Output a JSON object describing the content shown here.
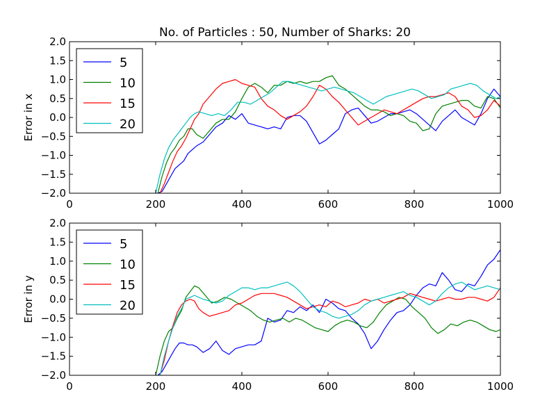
{
  "title": "No. of Particles : 50, Number of Sharks: 20",
  "chart_data": [
    {
      "type": "line",
      "title": "No. of Particles : 50, Number of Sharks: 20",
      "xlabel": "",
      "ylabel": "Error in x",
      "xlim": [
        0,
        1000
      ],
      "ylim": [
        -2.0,
        2.0
      ],
      "xticks": [
        "0",
        "200",
        "400",
        "600",
        "800",
        "1000"
      ],
      "yticks": [
        "−2.0",
        "−1.5",
        "−1.0",
        "−0.5",
        "0.0",
        "0.5",
        "1.0",
        "1.5",
        "2.0"
      ],
      "grid": false,
      "legend": "top-left",
      "series": [
        {
          "name": "5",
          "color": "#0000ff",
          "x": [
            205,
            215,
            225,
            235,
            245,
            255,
            265,
            275,
            285,
            295,
            310,
            325,
            340,
            355,
            370,
            385,
            400,
            415,
            430,
            445,
            460,
            475,
            490,
            505,
            520,
            535,
            550,
            565,
            580,
            595,
            610,
            625,
            640,
            655,
            670,
            685,
            700,
            715,
            730,
            745,
            760,
            775,
            790,
            805,
            820,
            835,
            850,
            865,
            880,
            895,
            910,
            925,
            940,
            955,
            970,
            985,
            1000
          ],
          "y": [
            -2.0,
            -1.95,
            -1.75,
            -1.55,
            -1.35,
            -1.25,
            -1.15,
            -0.95,
            -0.85,
            -0.75,
            -0.65,
            -0.45,
            -0.25,
            -0.15,
            0.05,
            -0.05,
            0.1,
            -0.15,
            -0.2,
            -0.25,
            -0.3,
            -0.25,
            -0.3,
            0.0,
            0.05,
            0.05,
            -0.1,
            -0.4,
            -0.7,
            -0.6,
            -0.45,
            -0.3,
            0.1,
            0.2,
            0.25,
            0.05,
            -0.15,
            -0.1,
            0.0,
            0.1,
            0.1,
            0.15,
            0.2,
            0.1,
            -0.05,
            -0.2,
            -0.35,
            -0.1,
            0.05,
            0.2,
            0.0,
            -0.1,
            -0.2,
            0.1,
            0.5,
            0.75,
            0.55
          ]
        },
        {
          "name": "10",
          "color": "#008000",
          "x": [
            205,
            215,
            225,
            235,
            245,
            255,
            265,
            275,
            285,
            295,
            310,
            325,
            340,
            355,
            370,
            385,
            400,
            415,
            430,
            445,
            460,
            475,
            490,
            505,
            520,
            535,
            550,
            565,
            580,
            595,
            610,
            625,
            640,
            655,
            670,
            685,
            700,
            715,
            730,
            745,
            760,
            775,
            790,
            805,
            820,
            835,
            850,
            865,
            880,
            895,
            910,
            925,
            940,
            955,
            970,
            985,
            1000
          ],
          "y": [
            -2.0,
            -1.55,
            -1.2,
            -0.95,
            -0.8,
            -0.6,
            -0.5,
            -0.3,
            -0.3,
            -0.45,
            -0.55,
            -0.35,
            -0.15,
            -0.05,
            -0.05,
            0.15,
            0.5,
            0.8,
            0.9,
            0.8,
            0.65,
            0.85,
            0.85,
            0.95,
            0.9,
            0.95,
            0.9,
            0.95,
            0.95,
            1.05,
            1.1,
            0.85,
            0.75,
            0.6,
            0.45,
            0.3,
            0.2,
            0.2,
            0.15,
            0.05,
            0.1,
            0.05,
            -0.1,
            -0.15,
            -0.35,
            -0.3,
            0.1,
            0.3,
            0.35,
            0.4,
            0.45,
            0.45,
            0.3,
            0.25,
            0.55,
            0.5,
            0.25
          ]
        },
        {
          "name": "15",
          "color": "#ff0000",
          "x": [
            210,
            220,
            230,
            240,
            250,
            260,
            270,
            280,
            290,
            300,
            310,
            325,
            340,
            355,
            370,
            385,
            400,
            415,
            430,
            445,
            460,
            475,
            490,
            505,
            520,
            535,
            550,
            565,
            580,
            595,
            610,
            625,
            640,
            655,
            670,
            685,
            700,
            715,
            730,
            745,
            760,
            775,
            790,
            805,
            820,
            835,
            850,
            865,
            880,
            895,
            910,
            925,
            940,
            955,
            970,
            985,
            1000
          ],
          "y": [
            -2.0,
            -1.75,
            -1.45,
            -1.15,
            -0.9,
            -0.75,
            -0.55,
            -0.3,
            -0.05,
            0.1,
            0.35,
            0.55,
            0.75,
            0.9,
            0.95,
            1.0,
            0.9,
            0.85,
            0.8,
            0.5,
            0.3,
            0.2,
            0.05,
            -0.05,
            0.05,
            0.15,
            0.3,
            0.55,
            0.85,
            0.75,
            0.55,
            0.4,
            0.2,
            0.0,
            -0.2,
            -0.1,
            0.0,
            0.1,
            0.2,
            0.15,
            0.1,
            0.2,
            0.3,
            0.4,
            0.5,
            0.55,
            0.55,
            0.6,
            0.65,
            0.55,
            0.3,
            0.2,
            0.0,
            0.05,
            0.2,
            0.45,
            0.3
          ]
        },
        {
          "name": "20",
          "color": "#00bfbf",
          "x": [
            200,
            210,
            220,
            230,
            240,
            250,
            260,
            270,
            280,
            290,
            300,
            315,
            330,
            345,
            360,
            375,
            390,
            405,
            420,
            435,
            450,
            465,
            480,
            495,
            510,
            525,
            540,
            555,
            570,
            585,
            600,
            615,
            630,
            645,
            660,
            675,
            690,
            705,
            720,
            735,
            750,
            765,
            780,
            795,
            810,
            825,
            840,
            855,
            870,
            885,
            900,
            915,
            930,
            945,
            960,
            975,
            990,
            1000
          ],
          "y": [
            -2.0,
            -1.5,
            -1.1,
            -0.8,
            -0.6,
            -0.45,
            -0.3,
            -0.15,
            0.0,
            0.1,
            0.15,
            0.1,
            0.05,
            0.1,
            0.05,
            0.2,
            0.4,
            0.4,
            0.35,
            0.45,
            0.55,
            0.65,
            0.8,
            0.95,
            0.95,
            0.9,
            0.85,
            0.8,
            0.75,
            0.7,
            0.75,
            0.8,
            0.75,
            0.7,
            0.65,
            0.55,
            0.45,
            0.35,
            0.45,
            0.55,
            0.6,
            0.65,
            0.7,
            0.75,
            0.7,
            0.6,
            0.5,
            0.55,
            0.6,
            0.75,
            0.8,
            0.85,
            0.9,
            0.85,
            0.7,
            0.6,
            0.5,
            0.55
          ]
        }
      ]
    },
    {
      "type": "line",
      "title": "",
      "xlabel": "",
      "ylabel": "Error in y",
      "xlim": [
        0,
        1000
      ],
      "ylim": [
        -2.0,
        2.0
      ],
      "xticks": [
        "0",
        "200",
        "400",
        "600",
        "800",
        "1000"
      ],
      "yticks": [
        "−2.0",
        "−1.5",
        "−1.0",
        "−0.5",
        "0.0",
        "0.5",
        "1.0",
        "1.5",
        "2.0"
      ],
      "grid": false,
      "legend": "top-left",
      "series": [
        {
          "name": "5",
          "color": "#0000ff",
          "x": [
            205,
            215,
            225,
            235,
            245,
            255,
            265,
            275,
            285,
            295,
            310,
            325,
            340,
            355,
            370,
            385,
            400,
            415,
            430,
            445,
            460,
            475,
            490,
            505,
            520,
            535,
            550,
            565,
            580,
            595,
            610,
            625,
            640,
            655,
            670,
            685,
            700,
            715,
            730,
            745,
            760,
            775,
            790,
            805,
            820,
            835,
            850,
            865,
            880,
            895,
            910,
            925,
            940,
            955,
            970,
            985,
            1000
          ],
          "y": [
            -2.0,
            -1.9,
            -1.7,
            -1.5,
            -1.3,
            -1.15,
            -1.15,
            -1.2,
            -1.2,
            -1.25,
            -1.4,
            -1.3,
            -1.1,
            -1.35,
            -1.45,
            -1.3,
            -1.25,
            -1.2,
            -1.2,
            -1.1,
            -0.5,
            -0.6,
            -0.55,
            -0.3,
            -0.35,
            -0.2,
            -0.3,
            -0.15,
            -0.35,
            0.0,
            -0.1,
            -0.25,
            -0.3,
            -0.5,
            -0.65,
            -0.9,
            -1.3,
            -1.1,
            -0.8,
            -0.55,
            -0.35,
            -0.3,
            -0.15,
            0.1,
            0.3,
            0.4,
            0.35,
            0.7,
            0.5,
            0.25,
            0.2,
            0.4,
            0.35,
            0.6,
            0.9,
            1.05,
            1.3
          ]
        },
        {
          "name": "10",
          "color": "#008000",
          "x": [
            200,
            210,
            220,
            230,
            240,
            250,
            260,
            270,
            280,
            290,
            300,
            315,
            330,
            345,
            360,
            375,
            390,
            405,
            420,
            435,
            450,
            465,
            480,
            495,
            510,
            525,
            540,
            555,
            570,
            585,
            600,
            615,
            630,
            645,
            660,
            675,
            690,
            705,
            720,
            735,
            750,
            765,
            780,
            795,
            810,
            825,
            840,
            855,
            870,
            885,
            900,
            915,
            930,
            945,
            960,
            975,
            990,
            1000
          ],
          "y": [
            -2.0,
            -1.5,
            -1.1,
            -0.85,
            -0.75,
            -0.5,
            -0.3,
            0.05,
            0.2,
            0.35,
            0.3,
            0.1,
            -0.1,
            -0.05,
            0.05,
            0.0,
            -0.1,
            -0.2,
            -0.3,
            -0.45,
            -0.55,
            -0.6,
            -0.55,
            -0.5,
            -0.6,
            -0.5,
            -0.55,
            -0.65,
            -0.75,
            -0.8,
            -0.85,
            -0.7,
            -0.6,
            -0.55,
            -0.6,
            -0.7,
            -0.75,
            -0.6,
            -0.35,
            -0.15,
            -0.05,
            0.05,
            0.0,
            -0.2,
            -0.35,
            -0.5,
            -0.75,
            -0.9,
            -0.8,
            -0.65,
            -0.7,
            -0.6,
            -0.55,
            -0.6,
            -0.7,
            -0.8,
            -0.85,
            -0.8
          ]
        },
        {
          "name": "15",
          "color": "#ff0000",
          "x": [
            210,
            220,
            230,
            240,
            250,
            260,
            270,
            280,
            290,
            300,
            310,
            325,
            340,
            355,
            370,
            385,
            400,
            415,
            430,
            445,
            460,
            475,
            490,
            505,
            520,
            535,
            550,
            565,
            580,
            595,
            610,
            625,
            640,
            655,
            670,
            685,
            700,
            715,
            730,
            745,
            760,
            775,
            790,
            805,
            820,
            835,
            850,
            865,
            880,
            895,
            910,
            925,
            940,
            955,
            970,
            985,
            1000
          ],
          "y": [
            -2.0,
            -1.6,
            -1.1,
            -0.7,
            -0.35,
            -0.15,
            -0.05,
            0.0,
            -0.05,
            -0.25,
            -0.35,
            -0.45,
            -0.4,
            -0.35,
            -0.3,
            -0.15,
            -0.1,
            0.0,
            0.1,
            0.15,
            0.15,
            0.15,
            0.1,
            0.05,
            -0.05,
            -0.15,
            -0.25,
            -0.2,
            -0.15,
            -0.2,
            -0.05,
            -0.1,
            -0.2,
            -0.15,
            -0.1,
            0.0,
            -0.05,
            0.0,
            -0.1,
            -0.05,
            0.0,
            0.05,
            0.15,
            0.1,
            0.05,
            0.0,
            -0.05,
            0.0,
            0.05,
            0.0,
            0.0,
            0.05,
            0.05,
            0.0,
            -0.05,
            0.05,
            0.3
          ]
        },
        {
          "name": "20",
          "color": "#00bfbf",
          "x": [
            210,
            220,
            230,
            240,
            250,
            260,
            270,
            280,
            290,
            300,
            310,
            325,
            340,
            355,
            370,
            385,
            400,
            415,
            430,
            445,
            460,
            475,
            490,
            505,
            520,
            535,
            550,
            565,
            580,
            595,
            610,
            625,
            640,
            655,
            670,
            685,
            700,
            715,
            730,
            745,
            760,
            775,
            790,
            805,
            820,
            835,
            850,
            865,
            880,
            895,
            910,
            925,
            940,
            955,
            970,
            985,
            1000
          ],
          "y": [
            -2.0,
            -1.5,
            -1.1,
            -0.75,
            -0.45,
            -0.25,
            0.0,
            0.05,
            0.1,
            0.05,
            0.0,
            -0.05,
            -0.1,
            -0.05,
            0.1,
            0.2,
            0.3,
            0.3,
            0.25,
            0.3,
            0.3,
            0.35,
            0.4,
            0.45,
            0.35,
            0.2,
            0.0,
            -0.2,
            -0.3,
            -0.35,
            -0.45,
            -0.5,
            -0.45,
            -0.4,
            -0.3,
            -0.15,
            -0.05,
            0.0,
            0.05,
            0.1,
            0.15,
            0.2,
            0.1,
            0.05,
            -0.05,
            -0.15,
            -0.05,
            0.15,
            0.3,
            0.4,
            0.45,
            0.35,
            0.25,
            0.3,
            0.35,
            0.3,
            0.25
          ]
        }
      ]
    }
  ]
}
